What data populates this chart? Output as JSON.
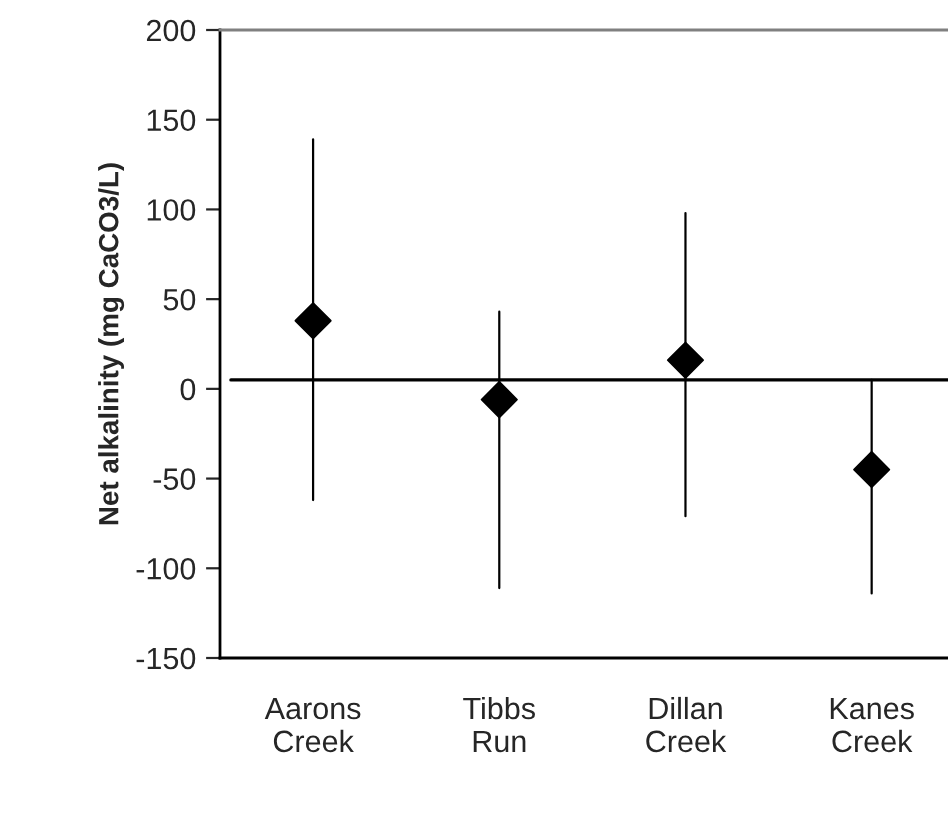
{
  "chart_data": {
    "type": "scatter",
    "ylabel": "Net alkalinity (mg CaCO3/L)",
    "categories": [
      "Aarons Creek",
      "Tibbs Run",
      "Dillan Creek",
      "Kanes Creek"
    ],
    "values": [
      38,
      -6,
      16,
      -45
    ],
    "errors": [
      [
        -62,
        139
      ],
      [
        -111,
        43
      ],
      [
        -71,
        98
      ],
      [
        -114,
        5
      ]
    ],
    "color": "#000000",
    "marker": "diamond",
    "ylim": [
      -150,
      200
    ],
    "yticks": [
      -150,
      -100,
      -50,
      0,
      50,
      100,
      150,
      200
    ],
    "ref_lines": [
      {
        "axis": "y",
        "value": 5,
        "color": "#000000"
      }
    ],
    "grid": false,
    "legend": false
  }
}
